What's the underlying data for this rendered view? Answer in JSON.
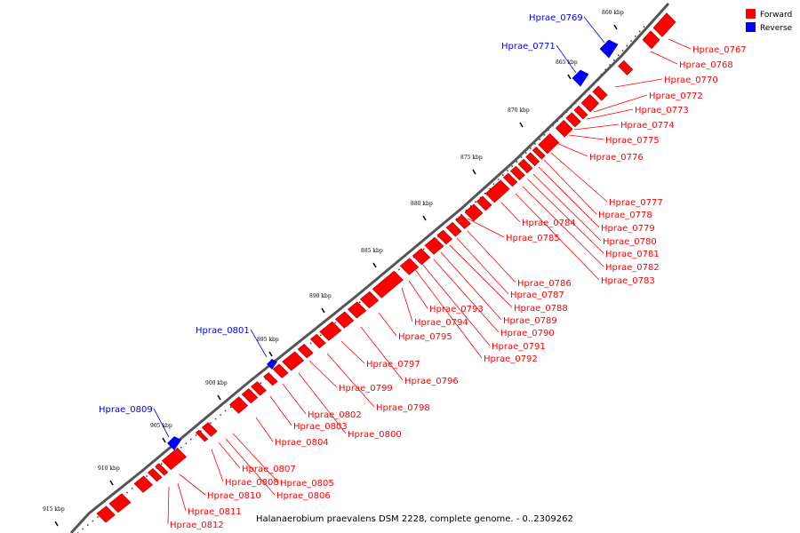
{
  "caption": "Halanaerobium praevalens DSM 2228, complete genome. - 0..2309262",
  "legend": [
    {
      "label": "Forward",
      "color": "#ff0000"
    },
    {
      "label": "Reverse",
      "color": "#0000ff"
    }
  ],
  "colors": {
    "forward": "#ff0000",
    "reverse": "#0000ff",
    "backbone": "#555555"
  },
  "ticks": [
    "860 kbp",
    "865 kbp",
    "870 kbp",
    "875 kbp",
    "880 kbp",
    "885 kbp",
    "890 kbp",
    "895 kbp",
    "900 kbp",
    "905 kbp",
    "910 kbp",
    "915 kbp"
  ],
  "genes": [
    {
      "name": "Hprae_0767",
      "strand": "forward"
    },
    {
      "name": "Hprae_0768",
      "strand": "forward"
    },
    {
      "name": "Hprae_0769",
      "strand": "reverse"
    },
    {
      "name": "Hprae_0770",
      "strand": "forward"
    },
    {
      "name": "Hprae_0771",
      "strand": "reverse"
    },
    {
      "name": "Hprae_0772",
      "strand": "forward"
    },
    {
      "name": "Hprae_0773",
      "strand": "forward"
    },
    {
      "name": "Hprae_0774",
      "strand": "forward"
    },
    {
      "name": "Hprae_0775",
      "strand": "forward"
    },
    {
      "name": "Hprae_0776",
      "strand": "forward"
    },
    {
      "name": "Hprae_0777",
      "strand": "forward"
    },
    {
      "name": "Hprae_0778",
      "strand": "forward"
    },
    {
      "name": "Hprae_0779",
      "strand": "forward"
    },
    {
      "name": "Hprae_0780",
      "strand": "forward"
    },
    {
      "name": "Hprae_0781",
      "strand": "forward"
    },
    {
      "name": "Hprae_0782",
      "strand": "forward"
    },
    {
      "name": "Hprae_0783",
      "strand": "forward"
    },
    {
      "name": "Hprae_0784",
      "strand": "forward"
    },
    {
      "name": "Hprae_0785",
      "strand": "forward"
    },
    {
      "name": "Hprae_0786",
      "strand": "forward"
    },
    {
      "name": "Hprae_0787",
      "strand": "forward"
    },
    {
      "name": "Hprae_0788",
      "strand": "forward"
    },
    {
      "name": "Hprae_0789",
      "strand": "forward"
    },
    {
      "name": "Hprae_0790",
      "strand": "forward"
    },
    {
      "name": "Hprae_0791",
      "strand": "forward"
    },
    {
      "name": "Hprae_0792",
      "strand": "forward"
    },
    {
      "name": "Hprae_0793",
      "strand": "forward"
    },
    {
      "name": "Hprae_0794",
      "strand": "forward"
    },
    {
      "name": "Hprae_0795",
      "strand": "forward"
    },
    {
      "name": "Hprae_0796",
      "strand": "forward"
    },
    {
      "name": "Hprae_0797",
      "strand": "forward"
    },
    {
      "name": "Hprae_0798",
      "strand": "forward"
    },
    {
      "name": "Hprae_0799",
      "strand": "forward"
    },
    {
      "name": "Hprae_0800",
      "strand": "forward"
    },
    {
      "name": "Hprae_0801",
      "strand": "reverse"
    },
    {
      "name": "Hprae_0802",
      "strand": "forward"
    },
    {
      "name": "Hprae_0803",
      "strand": "forward"
    },
    {
      "name": "Hprae_0804",
      "strand": "forward"
    },
    {
      "name": "Hprae_0805",
      "strand": "forward"
    },
    {
      "name": "Hprae_0806",
      "strand": "forward"
    },
    {
      "name": "Hprae_0807",
      "strand": "forward"
    },
    {
      "name": "Hprae_0808",
      "strand": "forward"
    },
    {
      "name": "Hprae_0809",
      "strand": "reverse"
    },
    {
      "name": "Hprae_0810",
      "strand": "forward"
    },
    {
      "name": "Hprae_0811",
      "strand": "forward"
    },
    {
      "name": "Hprae_0812",
      "strand": "forward"
    }
  ]
}
